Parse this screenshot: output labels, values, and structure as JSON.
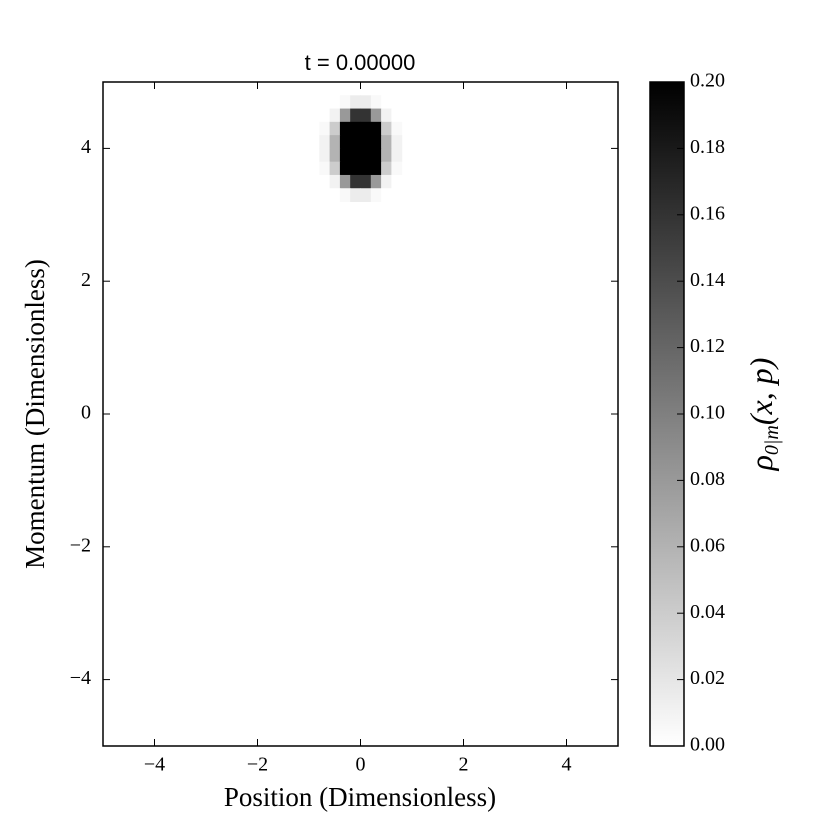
{
  "chart_data": {
    "type": "heatmap",
    "title": "t = 0.00000",
    "x_label": "Position (Dimensionless)",
    "y_label": "Momentum (Dimensionless)",
    "colorbar_label": {
      "base": "ρ",
      "sub": "0|m",
      "rest": "(x, p)"
    },
    "colormap": "gray_r",
    "x": [
      -0.7,
      -0.5,
      -0.3,
      -0.1,
      0.1,
      0.3,
      0.5,
      0.7
    ],
    "y": [
      4.7,
      4.5,
      4.3,
      4.1,
      3.9,
      3.7,
      3.5,
      3.3
    ],
    "values": [
      [
        0,
        0,
        0.005,
        0.015,
        0.015,
        0.005,
        0,
        0
      ],
      [
        0,
        0.01,
        0.08,
        0.16,
        0.16,
        0.08,
        0.01,
        0
      ],
      [
        0.005,
        0.04,
        0.2,
        0.3,
        0.3,
        0.2,
        0.04,
        0.005
      ],
      [
        0.01,
        0.06,
        0.26,
        0.4,
        0.4,
        0.26,
        0.06,
        0.01
      ],
      [
        0.01,
        0.06,
        0.26,
        0.4,
        0.4,
        0.26,
        0.06,
        0.01
      ],
      [
        0.005,
        0.04,
        0.2,
        0.3,
        0.3,
        0.2,
        0.04,
        0.005
      ],
      [
        0,
        0.01,
        0.08,
        0.16,
        0.16,
        0.08,
        0.01,
        0
      ],
      [
        0,
        0,
        0.005,
        0.015,
        0.015,
        0.005,
        0,
        0
      ]
    ],
    "xlim": [
      -5,
      5
    ],
    "ylim": [
      -5,
      5
    ],
    "xticks": [
      {
        "value": -4,
        "label": "−4"
      },
      {
        "value": -2,
        "label": "−2"
      },
      0,
      2,
      4
    ],
    "yticks": [
      {
        "value": -4,
        "label": "−4"
      },
      {
        "value": -2,
        "label": "−2"
      },
      0,
      2,
      4
    ],
    "clim": [
      0,
      0.2
    ],
    "cticks": [
      {
        "value": 0,
        "label": "0.00"
      },
      {
        "value": 0.02,
        "label": "0.02"
      },
      {
        "value": 0.04,
        "label": "0.04"
      },
      {
        "value": 0.06,
        "label": "0.06"
      },
      {
        "value": 0.08,
        "label": "0.08"
      },
      {
        "value": 0.1,
        "label": "0.10"
      },
      {
        "value": 0.12,
        "label": "0.12"
      },
      {
        "value": 0.14,
        "label": "0.14"
      },
      {
        "value": 0.16,
        "label": "0.16"
      },
      {
        "value": 0.18,
        "label": "0.18"
      },
      {
        "value": 0.2,
        "label": "0.20"
      }
    ]
  }
}
